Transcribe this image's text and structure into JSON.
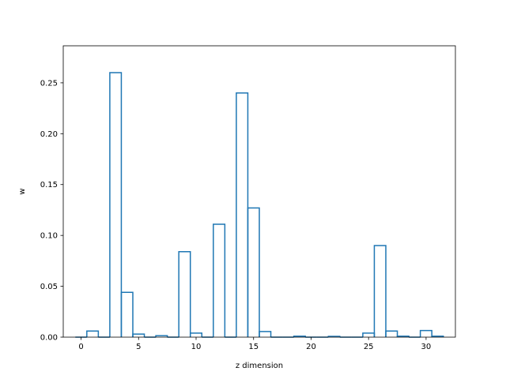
{
  "chart_data": {
    "type": "bar",
    "style": "step-histogram",
    "xlabel": "z dimension",
    "ylabel": "w",
    "xlim": [
      -1.55,
      32.55
    ],
    "ylim": [
      0,
      0.2864
    ],
    "xticks": [
      0,
      5,
      10,
      15,
      20,
      25,
      30
    ],
    "yticks": [
      0.0,
      0.05,
      0.1,
      0.15,
      0.2,
      0.25
    ],
    "ytick_labels": [
      "0.00",
      "0.05",
      "0.10",
      "0.15",
      "0.20",
      "0.25"
    ],
    "x": [
      0,
      1,
      2,
      3,
      4,
      5,
      6,
      7,
      8,
      9,
      10,
      11,
      12,
      13,
      14,
      15,
      16,
      17,
      18,
      19,
      20,
      21,
      22,
      23,
      24,
      25,
      26,
      27,
      28,
      29,
      30,
      31
    ],
    "values": [
      0.0,
      0.006,
      0.0,
      0.26,
      0.044,
      0.003,
      0.0,
      0.0015,
      0.0,
      0.084,
      0.004,
      0.0,
      0.111,
      0.0,
      0.24,
      0.127,
      0.0055,
      0.0,
      0.0,
      0.001,
      0.0,
      0.0,
      0.0008,
      0.0,
      0.0,
      0.004,
      0.09,
      0.006,
      0.001,
      0.0,
      0.0065,
      0.001
    ],
    "line_color": "#1f77b4",
    "grid": false
  }
}
